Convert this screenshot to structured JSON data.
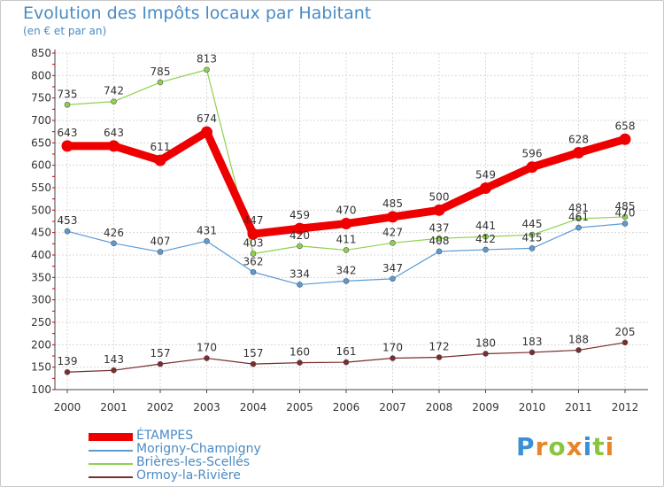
{
  "title": "Evolution des Impôts locaux par Habitant",
  "subtitle": "(en € et par an)",
  "logo": {
    "text": "Proxiti",
    "letters": [
      {
        "ch": "P",
        "color": "#3b8fd6"
      },
      {
        "ch": "r",
        "color": "#e8842a"
      },
      {
        "ch": "o",
        "color": "#8ac53f"
      },
      {
        "ch": "x",
        "color": "#e8842a"
      },
      {
        "ch": "i",
        "color": "#3b8fd6"
      },
      {
        "ch": "t",
        "color": "#8ac53f"
      },
      {
        "ch": "i",
        "color": "#e8842a"
      }
    ]
  },
  "chart_data": {
    "type": "line",
    "x": [
      "2000",
      "2001",
      "2002",
      "2003",
      "2004",
      "2005",
      "2006",
      "2007",
      "2008",
      "2009",
      "2010",
      "2011",
      "2012"
    ],
    "ylim": [
      100,
      850
    ],
    "yticks": [
      "100",
      "150",
      "200",
      "250",
      "300",
      "350",
      "400",
      "450",
      "500",
      "550",
      "600",
      "650",
      "700",
      "750",
      "800",
      "850"
    ],
    "grid": true,
    "legend_position": "bottom-left",
    "series": [
      {
        "name": "ÉTAMPES",
        "color": "#ee0000",
        "values": [
          643,
          643,
          611,
          674,
          447,
          459,
          470,
          485,
          500,
          549,
          596,
          628,
          658
        ],
        "labels": [
          "643",
          "643",
          "611",
          "674",
          "447",
          "459",
          "470",
          "485",
          "500",
          "549",
          "596",
          "628",
          "658"
        ]
      },
      {
        "name": "Morigny-Champigny",
        "color": "#5b9bd5",
        "values": [
          453,
          426,
          407,
          431,
          362,
          334,
          342,
          347,
          408,
          412,
          415,
          461,
          470
        ],
        "labels": [
          "453",
          "426",
          "407",
          "431",
          "362",
          "334",
          "342",
          "347",
          "408",
          "412",
          "415",
          "461",
          "470"
        ]
      },
      {
        "name": "Brières-les-Scellés",
        "color": "#8fd14f",
        "values": [
          735,
          742,
          785,
          813,
          403,
          420,
          411,
          427,
          437,
          441,
          445,
          481,
          485
        ],
        "labels": [
          "735",
          "742",
          "785",
          "813",
          "403",
          "420",
          "411",
          "427",
          "437",
          "441",
          "445",
          "481",
          "485"
        ]
      },
      {
        "name": "Ormoy-la-Rivière",
        "color": "#7b2c2c",
        "values": [
          139,
          143,
          157,
          170,
          157,
          160,
          161,
          170,
          172,
          180,
          183,
          188,
          205
        ],
        "labels": [
          "139",
          "143",
          "157",
          "170",
          "157",
          "160",
          "161",
          "170",
          "172",
          "180",
          "183",
          "188",
          "205"
        ]
      }
    ]
  }
}
